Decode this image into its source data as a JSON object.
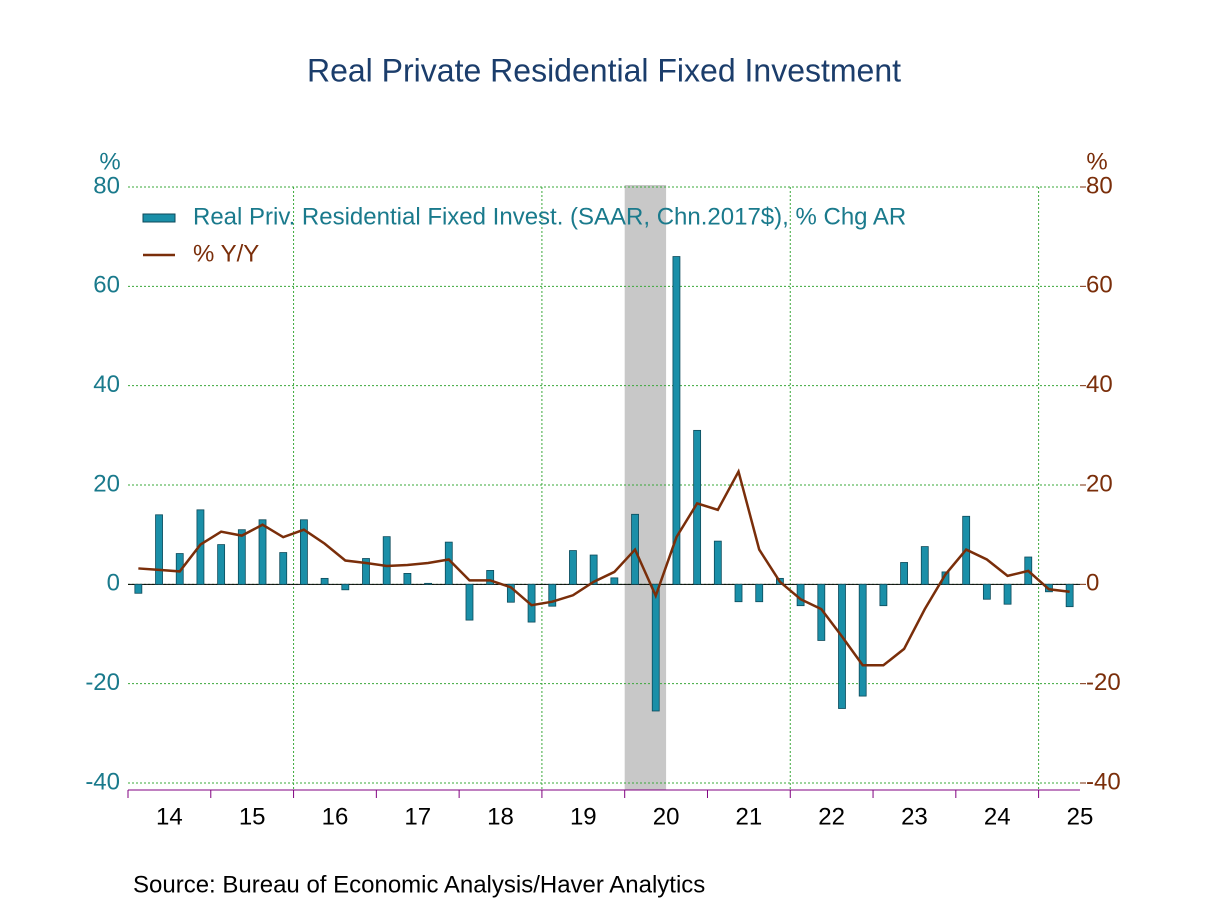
{
  "chart_data": {
    "type": "bar_line",
    "title": "Real Private Residential Fixed Investment",
    "source": "Source:  Bureau of Economic Analysis/Haver Analytics",
    "y_unit": "%",
    "y2_unit": "%",
    "categories": [
      null,
      null,
      null,
      null,
      null,
      null,
      null,
      null,
      null,
      null,
      null,
      null,
      null,
      null,
      null,
      null,
      null,
      null,
      null,
      null,
      null,
      null,
      null,
      null,
      null,
      null,
      null,
      null,
      null,
      null,
      null,
      null,
      null,
      null,
      null,
      null,
      null,
      null,
      null,
      null,
      null,
      null,
      null,
      null,
      null,
      null
    ],
    "year_labels": [
      "14",
      "15",
      "16",
      "17",
      "18",
      "19",
      "20",
      "21",
      "22",
      "23",
      "24",
      "25"
    ],
    "shaded": [
      24,
      26
    ],
    "series": [
      {
        "name": "Real Priv. Residential Fixed Invest. (SAAR, Chn.2017$), % Chg AR",
        "type": "bar",
        "color": "#1a8fa8",
        "values": [
          -1.8,
          14,
          6.2,
          15,
          8,
          11,
          13,
          6.4,
          13,
          1.2,
          -1.1,
          5.2,
          9.6,
          2.2,
          0.2,
          8.5,
          -7.2,
          2.8,
          -3.6,
          -7.6,
          -4.4,
          6.8,
          5.9,
          1.3,
          14.1,
          -25.5,
          66,
          31,
          8.7,
          -3.5,
          -3.5,
          1.2,
          -4.3,
          -11.3,
          -25,
          -22.5,
          -4.3,
          4.4,
          7.6,
          2.5,
          13.7,
          -3,
          -4,
          5.5,
          -1.5,
          -4.5
        ]
      },
      {
        "name": "% Y/Y",
        "type": "line",
        "color": "#7a2e0a",
        "axis": "y2",
        "values": [
          3.2,
          2.9,
          2.6,
          8,
          10.6,
          9.8,
          12,
          9.5,
          11,
          8.2,
          4.8,
          4.3,
          3.7,
          3.9,
          4.3,
          5,
          0.8,
          0.8,
          -0.6,
          -4.2,
          -3.5,
          -2.2,
          0.5,
          2.5,
          7,
          -2.3,
          9.5,
          16.3,
          15,
          22.7,
          7,
          0.5,
          -3,
          -5,
          -10.5,
          -16.3,
          -16.3,
          -13,
          -5,
          2,
          7,
          5,
          1.7,
          2.7,
          -1,
          -1.5
        ]
      }
    ],
    "ylim": [
      -40,
      80
    ],
    "yticks": [
      -40,
      -20,
      0,
      20,
      40,
      60,
      80
    ],
    "y2lim": [
      -40,
      80
    ],
    "y2ticks": [
      -40,
      -20,
      0,
      20,
      40,
      60,
      80
    ],
    "grid": true
  }
}
